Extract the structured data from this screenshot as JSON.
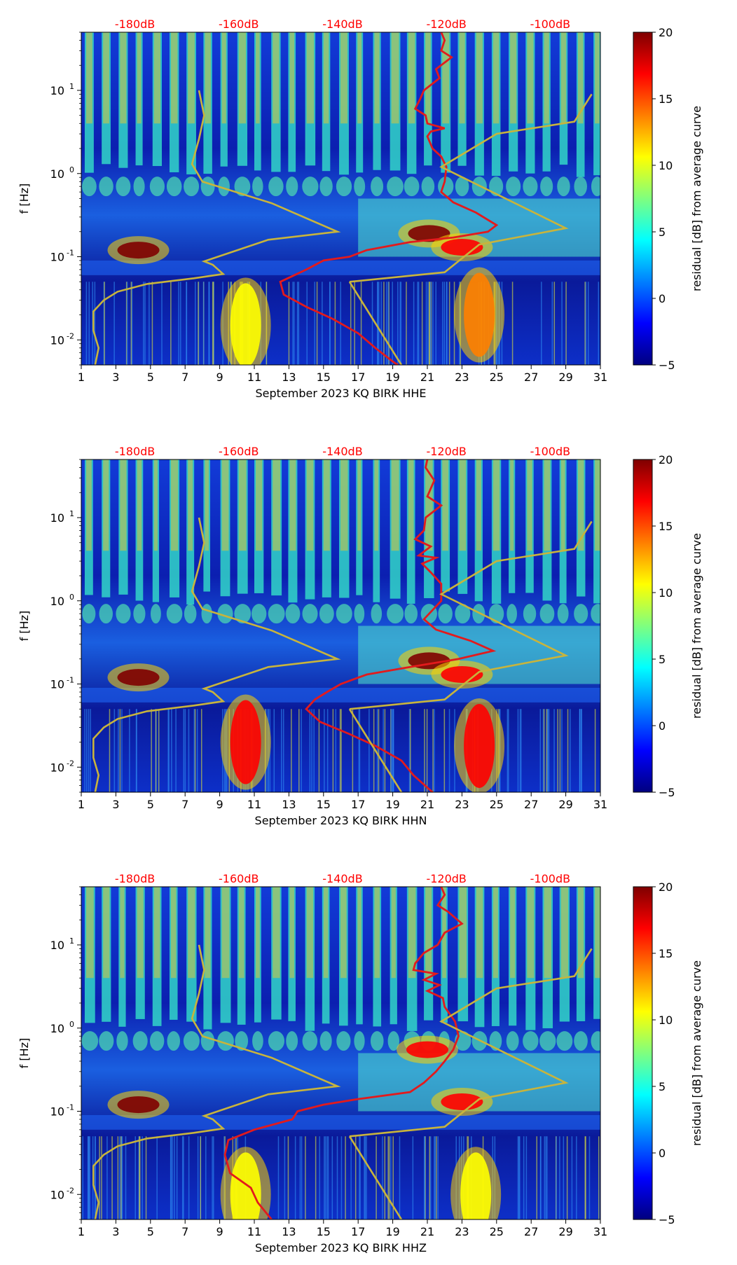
{
  "figure": {
    "panel_count": 3
  },
  "colormap": [
    "#00007f",
    "#0000ff",
    "#007fff",
    "#00ffff",
    "#7fff7f",
    "#ffff00",
    "#ff7f00",
    "#ff0000",
    "#7f0000"
  ],
  "colors": {
    "psd_curve": "#e31a1c",
    "model_curve": "#c8b43c",
    "top_label": "#ff0000"
  },
  "chart_data": [
    {
      "type": "heatmap",
      "panel": "HHE",
      "xlabel": "September 2023 KQ BIRK  HHE",
      "ylabel": "f [Hz]",
      "xlim": [
        1,
        31
      ],
      "ylim": [
        0.005,
        50
      ],
      "yscale": "log",
      "x_ticks": [
        "1",
        "3",
        "5",
        "7",
        "9",
        "11",
        "13",
        "15",
        "17",
        "19",
        "21",
        "23",
        "25",
        "27",
        "29",
        "31"
      ],
      "y_ticks": [
        {
          "value": 10,
          "label": "10^1"
        },
        {
          "value": 1,
          "label": "10^0"
        },
        {
          "value": 0.1,
          "label": "10^-1"
        },
        {
          "value": 0.01,
          "label": "10^-2"
        }
      ],
      "top_labels": [
        "-180dB",
        "-160dB",
        "-140dB",
        "-120dB",
        "-100dB"
      ],
      "top_label_x": [
        4.1,
        10.1,
        16.1,
        22.1,
        28.1
      ],
      "colorbar": {
        "label": "residual [dB] from average curve",
        "min": -5,
        "max": 20,
        "ticks": [
          "20",
          "15",
          "10",
          "5",
          "0",
          "−5"
        ]
      },
      "features": [
        {
          "x": 4.3,
          "f": 0.12,
          "value": 20
        },
        {
          "x": 21.1,
          "f": 0.19,
          "value": 19
        },
        {
          "x": 23.0,
          "f": 0.13,
          "value": 18
        },
        {
          "x": 24.0,
          "f": 0.02,
          "value": 14
        },
        {
          "x": 10.5,
          "f": 0.015,
          "value": 11
        }
      ],
      "series": [
        {
          "name": "PSD (red)",
          "points": [
            [
              21.8,
              50
            ],
            [
              22.0,
              40
            ],
            [
              21.8,
              30
            ],
            [
              22.4,
              25
            ],
            [
              21.5,
              18
            ],
            [
              21.7,
              14
            ],
            [
              20.8,
              10
            ],
            [
              20.6,
              8
            ],
            [
              20.3,
              6
            ],
            [
              20.9,
              5
            ],
            [
              21.0,
              4
            ],
            [
              22.0,
              3.5
            ],
            [
              21.2,
              3.2
            ],
            [
              21.0,
              2.8
            ],
            [
              21.3,
              2.0
            ],
            [
              21.8,
              1.6
            ],
            [
              22.1,
              1.2
            ],
            [
              22.0,
              0.8
            ],
            [
              21.8,
              0.6
            ],
            [
              22.5,
              0.45
            ],
            [
              23.8,
              0.34
            ],
            [
              25.0,
              0.24
            ],
            [
              24.5,
              0.2
            ],
            [
              22.5,
              0.17
            ],
            [
              20.0,
              0.15
            ],
            [
              17.5,
              0.12
            ],
            [
              16.5,
              0.1
            ],
            [
              15.0,
              0.09
            ],
            [
              14.0,
              0.07
            ],
            [
              12.5,
              0.05
            ],
            [
              12.7,
              0.035
            ],
            [
              14.0,
              0.025
            ],
            [
              15.5,
              0.018
            ],
            [
              17.0,
              0.012
            ],
            [
              18.0,
              0.008
            ],
            [
              19.0,
              0.0055
            ],
            [
              19.3,
              0.005
            ]
          ]
        },
        {
          "name": "Model (yellow)",
          "points": [
            [
              1.8,
              0.005
            ],
            [
              2.0,
              0.008
            ],
            [
              1.7,
              0.013
            ],
            [
              1.7,
              0.022
            ],
            [
              2.3,
              0.03
            ],
            [
              3.1,
              0.038
            ],
            [
              4.8,
              0.047
            ],
            [
              7.5,
              0.055
            ],
            [
              9.2,
              0.062
            ],
            [
              8.6,
              0.08
            ],
            [
              8.1,
              0.088
            ],
            [
              11.8,
              0.16
            ],
            [
              15.8,
              0.2
            ],
            [
              12.0,
              0.44
            ],
            [
              8.0,
              0.8
            ],
            [
              7.4,
              1.3
            ],
            [
              7.8,
              2.6
            ],
            [
              8.1,
              5.0
            ],
            [
              7.8,
              10.0
            ],
            [
              16.5,
              0.05
            ],
            [
              22.0,
              0.065
            ],
            [
              24.0,
              0.14
            ],
            [
              29.0,
              0.22
            ],
            [
              21.8,
              1.2
            ],
            [
              25.0,
              3.0
            ],
            [
              29.5,
              4.2
            ],
            [
              30.5,
              9.0
            ],
            [
              19.5,
              0.005
            ]
          ]
        }
      ]
    },
    {
      "type": "heatmap",
      "panel": "HHN",
      "xlabel": "September 2023 KQ BIRK  HHN",
      "ylabel": "f [Hz]",
      "xlim": [
        1,
        31
      ],
      "ylim": [
        0.005,
        50
      ],
      "yscale": "log",
      "x_ticks": [
        "1",
        "3",
        "5",
        "7",
        "9",
        "11",
        "13",
        "15",
        "17",
        "19",
        "21",
        "23",
        "25",
        "27",
        "29",
        "31"
      ],
      "y_ticks": [
        {
          "value": 10,
          "label": "10^1"
        },
        {
          "value": 1,
          "label": "10^0"
        },
        {
          "value": 0.1,
          "label": "10^-1"
        },
        {
          "value": 0.01,
          "label": "10^-2"
        }
      ],
      "top_labels": [
        "-180dB",
        "-160dB",
        "-140dB",
        "-120dB",
        "-100dB"
      ],
      "top_label_x": [
        4.1,
        10.1,
        16.1,
        22.1,
        28.1
      ],
      "colorbar": {
        "label": "residual [dB] from average curve",
        "min": -5,
        "max": 20,
        "ticks": [
          "20",
          "15",
          "10",
          "5",
          "0",
          "−5"
        ]
      },
      "features": [
        {
          "x": 4.3,
          "f": 0.12,
          "value": 20
        },
        {
          "x": 21.1,
          "f": 0.19,
          "value": 19
        },
        {
          "x": 23.0,
          "f": 0.13,
          "value": 18
        },
        {
          "x": 24.0,
          "f": 0.018,
          "value": 17
        },
        {
          "x": 10.5,
          "f": 0.02,
          "value": 16
        }
      ],
      "series": [
        {
          "name": "PSD (red)",
          "points": [
            [
              21.0,
              50
            ],
            [
              20.9,
              40
            ],
            [
              21.4,
              28
            ],
            [
              21.0,
              18
            ],
            [
              21.8,
              14
            ],
            [
              20.9,
              10
            ],
            [
              20.8,
              7
            ],
            [
              20.3,
              5.5
            ],
            [
              21.2,
              4.5
            ],
            [
              20.5,
              3.5
            ],
            [
              21.5,
              3.3
            ],
            [
              20.7,
              2.8
            ],
            [
              21.2,
              2.2
            ],
            [
              21.8,
              1.6
            ],
            [
              21.8,
              1.0
            ],
            [
              20.8,
              0.6
            ],
            [
              21.5,
              0.45
            ],
            [
              23.5,
              0.33
            ],
            [
              24.8,
              0.25
            ],
            [
              22.8,
              0.2
            ],
            [
              20.0,
              0.16
            ],
            [
              17.5,
              0.13
            ],
            [
              16.0,
              0.1
            ],
            [
              15.2,
              0.08
            ],
            [
              14.5,
              0.065
            ],
            [
              14.0,
              0.05
            ],
            [
              14.8,
              0.035
            ],
            [
              16.5,
              0.025
            ],
            [
              18.0,
              0.018
            ],
            [
              19.5,
              0.012
            ],
            [
              20.2,
              0.008
            ],
            [
              21.3,
              0.005
            ]
          ]
        },
        {
          "name": "Model (yellow)",
          "points": [
            [
              1.8,
              0.005
            ],
            [
              2.0,
              0.008
            ],
            [
              1.7,
              0.013
            ],
            [
              1.7,
              0.022
            ],
            [
              2.3,
              0.03
            ],
            [
              3.1,
              0.038
            ],
            [
              4.8,
              0.047
            ],
            [
              7.5,
              0.055
            ],
            [
              9.2,
              0.062
            ],
            [
              8.6,
              0.08
            ],
            [
              8.1,
              0.088
            ],
            [
              11.8,
              0.16
            ],
            [
              15.8,
              0.2
            ],
            [
              12.0,
              0.44
            ],
            [
              8.0,
              0.8
            ],
            [
              7.4,
              1.3
            ],
            [
              7.8,
              2.6
            ],
            [
              8.1,
              5.0
            ],
            [
              7.8,
              10.0
            ],
            [
              16.5,
              0.05
            ],
            [
              22.0,
              0.065
            ],
            [
              24.0,
              0.14
            ],
            [
              29.0,
              0.22
            ],
            [
              21.8,
              1.2
            ],
            [
              25.0,
              3.0
            ],
            [
              29.5,
              4.2
            ],
            [
              30.5,
              9.0
            ],
            [
              19.5,
              0.005
            ]
          ]
        }
      ]
    },
    {
      "type": "heatmap",
      "panel": "HHZ",
      "xlabel": "September 2023 KQ BIRK  HHZ",
      "ylabel": "f [Hz]",
      "xlim": [
        1,
        31
      ],
      "ylim": [
        0.005,
        50
      ],
      "yscale": "log",
      "x_ticks": [
        "1",
        "3",
        "5",
        "7",
        "9",
        "11",
        "13",
        "15",
        "17",
        "19",
        "21",
        "23",
        "25",
        "27",
        "29",
        "31"
      ],
      "y_ticks": [
        {
          "value": 10,
          "label": "10^1"
        },
        {
          "value": 1,
          "label": "10^0"
        },
        {
          "value": 0.1,
          "label": "10^-1"
        },
        {
          "value": 0.01,
          "label": "10^-2"
        }
      ],
      "top_labels": [
        "-180dB",
        "-160dB",
        "-140dB",
        "-120dB",
        "-100dB"
      ],
      "top_label_x": [
        4.1,
        10.1,
        16.1,
        22.1,
        28.1
      ],
      "colorbar": {
        "label": "residual [dB] from average curve",
        "min": -5,
        "max": 20,
        "ticks": [
          "20",
          "15",
          "10",
          "5",
          "0",
          "−5"
        ]
      },
      "features": [
        {
          "x": 4.3,
          "f": 0.12,
          "value": 20
        },
        {
          "x": 21.0,
          "f": 0.55,
          "value": 18
        },
        {
          "x": 23.0,
          "f": 0.13,
          "value": 17
        },
        {
          "x": 23.8,
          "f": 0.01,
          "value": 12
        },
        {
          "x": 10.5,
          "f": 0.01,
          "value": 11
        }
      ],
      "series": [
        {
          "name": "PSD (red)",
          "points": [
            [
              21.8,
              50
            ],
            [
              22.0,
              40
            ],
            [
              21.6,
              30
            ],
            [
              22.2,
              25
            ],
            [
              23.0,
              18
            ],
            [
              22.0,
              14
            ],
            [
              21.6,
              10
            ],
            [
              20.8,
              8
            ],
            [
              20.3,
              6
            ],
            [
              20.2,
              5
            ],
            [
              21.5,
              4.5
            ],
            [
              20.8,
              3.8
            ],
            [
              21.7,
              3.3
            ],
            [
              21.0,
              2.8
            ],
            [
              21.9,
              2.3
            ],
            [
              22.0,
              1.8
            ],
            [
              22.6,
              1.2
            ],
            [
              22.8,
              0.8
            ],
            [
              22.5,
              0.55
            ],
            [
              22.0,
              0.4
            ],
            [
              21.5,
              0.3
            ],
            [
              20.8,
              0.22
            ],
            [
              20.0,
              0.17
            ],
            [
              17.0,
              0.14
            ],
            [
              15.0,
              0.12
            ],
            [
              13.5,
              0.1
            ],
            [
              13.2,
              0.08
            ],
            [
              11.0,
              0.06
            ],
            [
              9.5,
              0.045
            ],
            [
              9.3,
              0.03
            ],
            [
              9.6,
              0.018
            ],
            [
              10.8,
              0.012
            ],
            [
              11.2,
              0.008
            ],
            [
              12.0,
              0.005
            ]
          ]
        },
        {
          "name": "Model (yellow)",
          "points": [
            [
              1.8,
              0.005
            ],
            [
              2.0,
              0.008
            ],
            [
              1.7,
              0.013
            ],
            [
              1.7,
              0.022
            ],
            [
              2.3,
              0.03
            ],
            [
              3.1,
              0.038
            ],
            [
              4.8,
              0.047
            ],
            [
              7.5,
              0.055
            ],
            [
              9.2,
              0.062
            ],
            [
              8.6,
              0.08
            ],
            [
              8.1,
              0.088
            ],
            [
              11.8,
              0.16
            ],
            [
              15.8,
              0.2
            ],
            [
              12.0,
              0.44
            ],
            [
              8.0,
              0.8
            ],
            [
              7.4,
              1.3
            ],
            [
              7.8,
              2.6
            ],
            [
              8.1,
              5.0
            ],
            [
              7.8,
              10.0
            ],
            [
              16.5,
              0.05
            ],
            [
              22.0,
              0.065
            ],
            [
              24.0,
              0.14
            ],
            [
              29.0,
              0.22
            ],
            [
              21.8,
              1.2
            ],
            [
              25.0,
              3.0
            ],
            [
              29.5,
              4.2
            ],
            [
              30.5,
              9.0
            ],
            [
              19.5,
              0.005
            ]
          ]
        }
      ]
    }
  ]
}
